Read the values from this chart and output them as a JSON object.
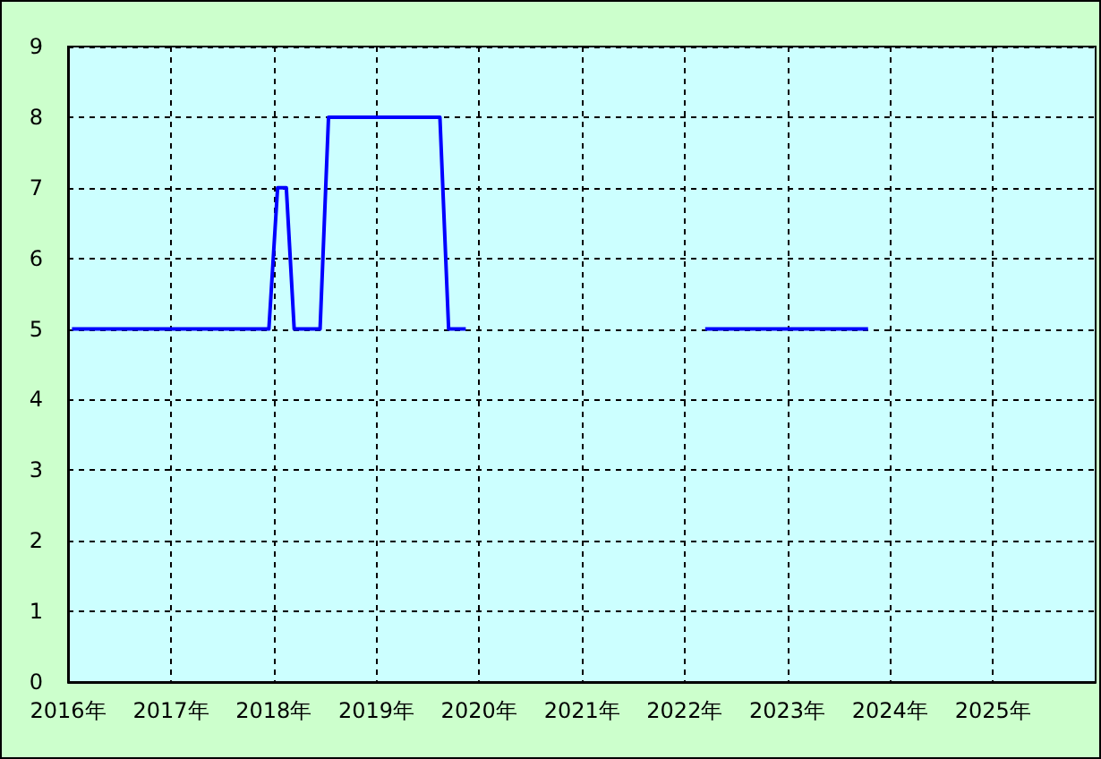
{
  "chart_data": {
    "type": "line",
    "x": [
      "2016-01-15",
      "2017-12-15",
      "2018-01-15",
      "2018-02-15",
      "2018-03-15",
      "2018-06-15",
      "2018-07-15",
      "2019-08-15",
      "2019-09-15",
      "2019-11-15",
      "2019-12-15",
      "2022-03-15",
      "2023-10-15"
    ],
    "values": [
      5,
      5,
      7,
      7,
      5,
      5,
      8,
      8,
      5,
      5,
      null,
      5,
      5
    ],
    "color": "#0000ff",
    "xlim": [
      "2016-01-01",
      "2026-01-01"
    ],
    "xticks": [
      {
        "value": "2016",
        "label": "2016年"
      },
      {
        "value": "2017",
        "label": "2017年"
      },
      {
        "value": "2018",
        "label": "2018年"
      },
      {
        "value": "2019",
        "label": "2019年"
      },
      {
        "value": "2020",
        "label": "2020年"
      },
      {
        "value": "2021",
        "label": "2021年"
      },
      {
        "value": "2022",
        "label": "2022年"
      },
      {
        "value": "2023",
        "label": "2023年"
      },
      {
        "value": "2024",
        "label": "2024年"
      },
      {
        "value": "2025",
        "label": "2025年"
      }
    ],
    "ylim": [
      0,
      9
    ],
    "yticks": [
      0,
      1,
      2,
      3,
      4,
      5,
      6,
      7,
      8,
      9
    ],
    "grid": true
  }
}
